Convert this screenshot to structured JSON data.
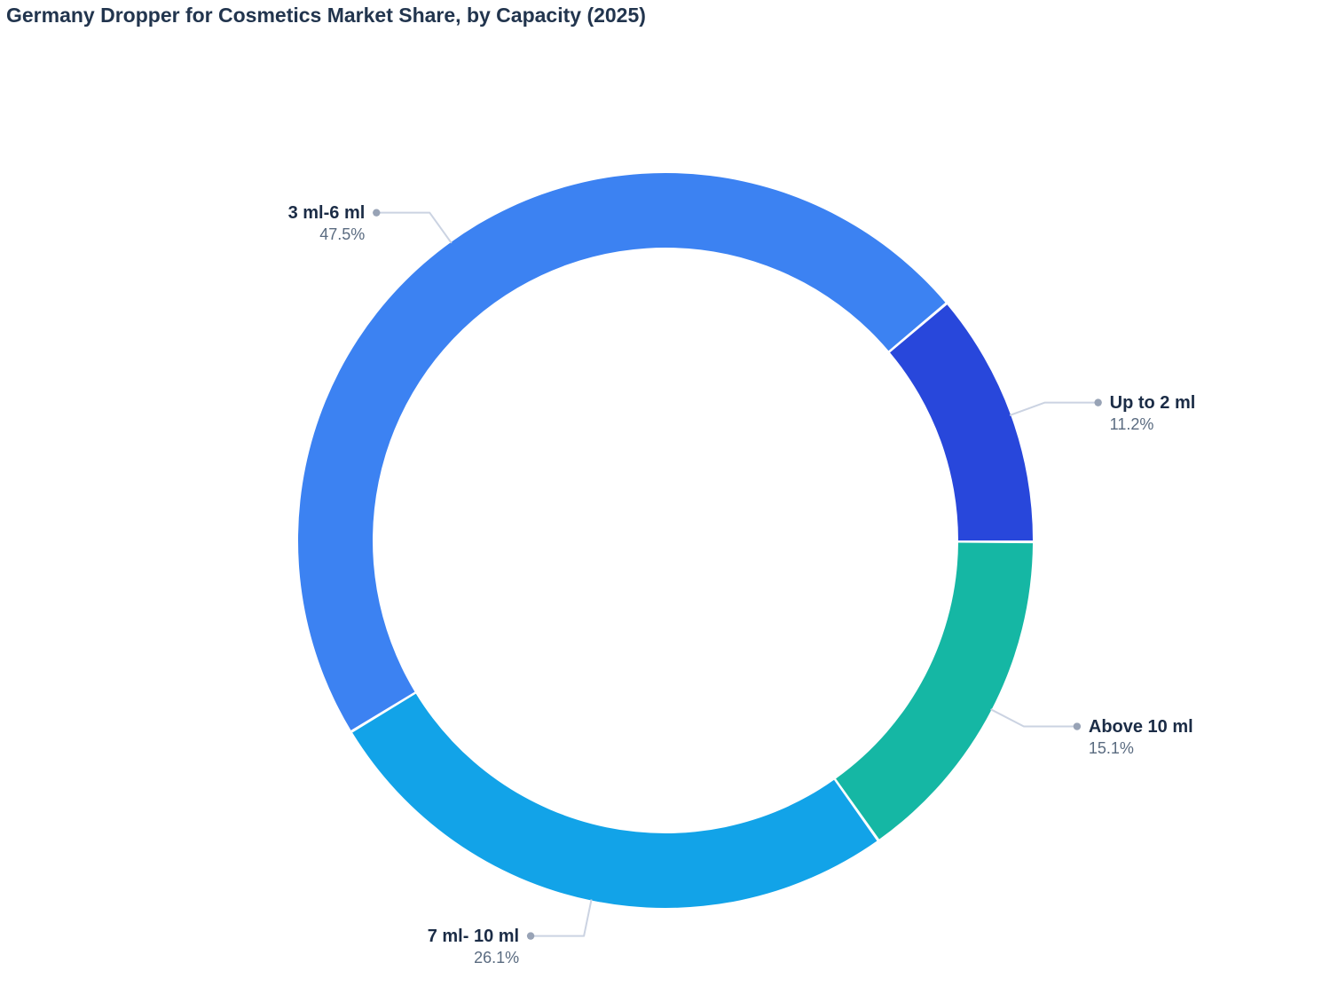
{
  "chart_data": {
    "type": "pie",
    "subtype": "donut",
    "title": "Germany Dropper for Cosmetics Market Share, by Capacity (2025)",
    "legend_position": "none",
    "labels_style": "outside-callout",
    "segments": [
      {
        "label": "3 ml-6 ml",
        "value": 47.5,
        "display": "47.5%",
        "color": "#3C82F2"
      },
      {
        "label": "Up to 2 ml",
        "value": 11.2,
        "display": "11.2%",
        "color": "#2847DB"
      },
      {
        "label": "Above 10 ml",
        "value": 15.1,
        "display": "15.1%",
        "color": "#15B7A4"
      },
      {
        "label": "7 ml- 10 ml",
        "value": 26.1,
        "display": "26.1%",
        "color": "#12A3E8"
      }
    ],
    "colors": {
      "title_text": "#22354E",
      "label_text": "#1B2C46",
      "percent_text": "#5A6B80",
      "leader_line": "#CBD3E2",
      "leader_dot": "#98A3B6",
      "background": "#FFFFFF"
    }
  }
}
